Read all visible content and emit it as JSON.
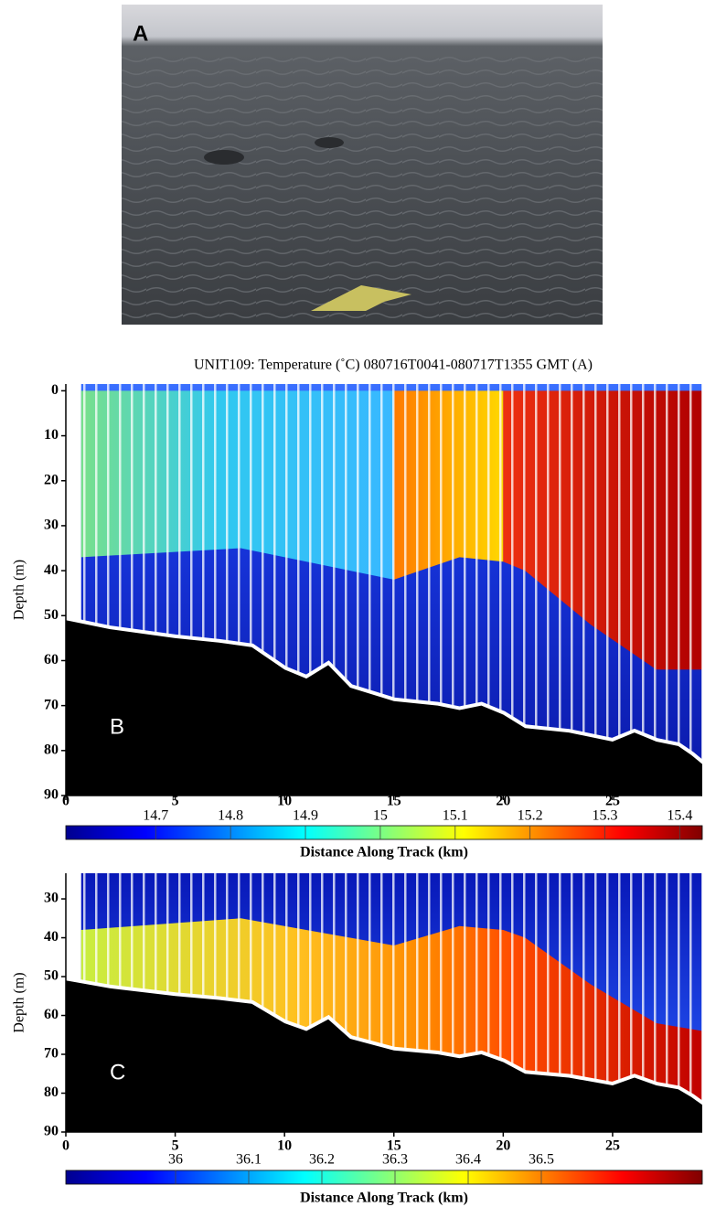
{
  "panel_a": {
    "label": "A"
  },
  "chart_data": [
    {
      "type": "section",
      "panel_label": "B",
      "title": "UNIT109: Temperature (˚C) 080716T0041-080717T1355 GMT (A)",
      "y_label": "Depth (m)",
      "x_label": "Distance Along Track (km)",
      "xlim": [
        0,
        29.1
      ],
      "xticks": [
        0,
        5,
        10,
        15,
        20,
        25
      ],
      "ylim": [
        -1.5,
        90
      ],
      "yticks": [
        0,
        10,
        20,
        30,
        40,
        50,
        60,
        70,
        80,
        90
      ],
      "y_inverted": true,
      "colormap": "jet",
      "clim": [
        14.58,
        15.43
      ],
      "cticks": [
        14.7,
        14.8,
        14.9,
        15,
        15.1,
        15.2,
        15.3,
        15.4
      ],
      "seafloor": {
        "x": [
          0,
          2,
          5,
          7,
          8.5,
          10,
          11,
          12,
          13,
          15,
          17,
          18,
          19,
          20,
          21,
          23,
          25,
          26,
          27,
          28,
          28.6,
          29.1
        ],
        "values": [
          51,
          53,
          55,
          56,
          57,
          62,
          64,
          61,
          66,
          69,
          70,
          71,
          70,
          72,
          75,
          76,
          78,
          76,
          78,
          79,
          81,
          83
        ]
      }
    },
    {
      "type": "section",
      "panel_label": "C",
      "y_label": "Depth (m)",
      "x_label": "Distance Along Track (km)",
      "xlim": [
        0,
        29.1
      ],
      "xticks": [
        0,
        5,
        10,
        15,
        20,
        25
      ],
      "ylim": [
        23.4,
        90
      ],
      "yticks": [
        30,
        40,
        50,
        60,
        70,
        80,
        90
      ],
      "y_inverted": true,
      "colormap": "jet",
      "clim": [
        35.85,
        36.72
      ],
      "cticks": [
        36,
        36.1,
        36.2,
        36.3,
        36.4,
        36.5
      ],
      "seafloor": {
        "x": [
          0,
          2,
          5,
          7,
          8.5,
          10,
          11,
          12,
          13,
          15,
          17,
          18,
          19,
          20,
          21,
          23,
          25,
          26,
          27,
          28,
          28.6,
          29.1
        ],
        "values": [
          51,
          53,
          55,
          56,
          57,
          62,
          64,
          61,
          66,
          69,
          70,
          71,
          70,
          72,
          75,
          76,
          78,
          76,
          78,
          79,
          81,
          83
        ]
      }
    }
  ]
}
